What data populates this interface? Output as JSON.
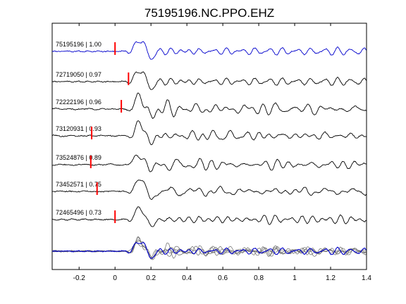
{
  "chart_data": {
    "type": "line",
    "title": "75195196.NC.PPO.EHZ",
    "xlabel": "",
    "ylabel": "",
    "xlim": [
      -0.35,
      1.4
    ],
    "xticks": [
      -0.2,
      0,
      0.2,
      0.4,
      0.6,
      0.8,
      1.0,
      1.2,
      1.4
    ],
    "xtick_labels": [
      "-0.2",
      "0",
      "0.2",
      "0.4",
      "0.6",
      "0.8",
      "1",
      "1.2",
      "1.4"
    ],
    "grid": false,
    "legend": "none",
    "colors": {
      "reference": "#0000cc",
      "trace": "#000000",
      "pick": "#ff0000",
      "overlay": "#6a6a6a"
    },
    "series": [
      {
        "label": "75195196 | 1.00",
        "pick_time": 0.0,
        "color": "reference"
      },
      {
        "label": "72719050 | 0.97",
        "pick_time": 0.075,
        "color": "trace"
      },
      {
        "label": "72222196 | 0.96",
        "pick_time": 0.035,
        "color": "trace"
      },
      {
        "label": "73120931 | 0.93",
        "pick_time": -0.13,
        "color": "trace"
      },
      {
        "label": "73524876 | 0.89",
        "pick_time": -0.135,
        "color": "trace"
      },
      {
        "label": "73452571 | 0.75",
        "pick_time": -0.1,
        "color": "trace"
      },
      {
        "label": "72465496 | 0.73",
        "pick_time": 0.0,
        "color": "trace"
      }
    ],
    "overlay": {
      "description_visible": false
    }
  }
}
